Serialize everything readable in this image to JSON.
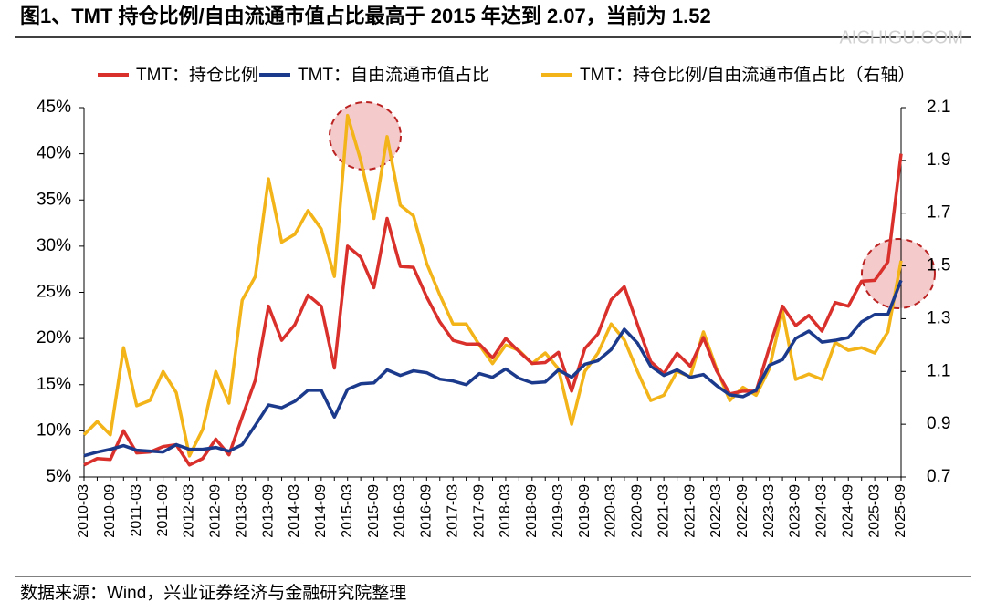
{
  "chart_data": {
    "type": "line",
    "title": "图1、TMT 持仓比例/自由流通市值占比最高于 2015 年达到 2.07，当前为 1.52",
    "source": "数据来源：Wind，兴业证券经济与金融研究院整理",
    "watermark": "AICHIGU.COM",
    "categories": [
      "2010-03",
      null,
      "2010-09",
      null,
      "2011-03",
      null,
      "2011-09",
      null,
      "2012-03",
      null,
      "2012-09",
      null,
      "2013-03",
      null,
      "2013-09",
      null,
      "2014-03",
      null,
      "2014-09",
      null,
      "2015-03",
      null,
      "2015-09",
      null,
      "2016-03",
      null,
      "2016-09",
      null,
      "2017-03",
      null,
      "2017-09",
      null,
      "2018-03",
      null,
      "2018-09",
      null,
      "2019-03",
      null,
      "2019-09",
      null,
      "2020-03",
      null,
      "2020-09",
      null,
      "2021-03",
      null,
      "2021-09",
      null,
      "2022-03",
      null,
      "2022-09",
      null,
      "2023-03",
      null,
      "2023-09",
      null,
      "2024-03",
      null,
      "2024-09",
      null,
      "2025-03",
      null,
      "2025-09"
    ],
    "ylim": [
      5,
      45
    ],
    "yticks": [
      {
        "value": 5,
        "label": "5%"
      },
      {
        "value": 10,
        "label": "10%"
      },
      {
        "value": 15,
        "label": "15%"
      },
      {
        "value": 20,
        "label": "20%"
      },
      {
        "value": 25,
        "label": "25%"
      },
      {
        "value": 30,
        "label": "30%"
      },
      {
        "value": 35,
        "label": "35%"
      },
      {
        "value": 40,
        "label": "40%"
      },
      {
        "value": 45,
        "label": "45%"
      }
    ],
    "y2lim": [
      0.7,
      2.1
    ],
    "y2ticks": [
      0.7,
      0.9,
      1.1,
      1.3,
      1.5,
      1.7,
      1.9,
      2.1
    ],
    "series": [
      {
        "name": "TMT：持仓比例",
        "color": "#d9302c",
        "values": [
          6.3,
          7.0,
          6.9,
          10.0,
          7.6,
          7.7,
          8.3,
          8.5,
          6.3,
          7.0,
          9.1,
          7.4,
          11.5,
          15.5,
          23.5,
          19.8,
          21.5,
          24.7,
          23.5,
          16.8,
          30.0,
          28.8,
          25.5,
          33.0,
          27.8,
          27.7,
          24.5,
          21.8,
          19.8,
          19.4,
          19.4,
          17.9,
          20.0,
          18.6,
          17.3,
          17.4,
          18.5,
          14.3,
          18.9,
          20.5,
          24.2,
          25.6,
          21.5,
          17.5,
          16.2,
          18.4,
          17.0,
          20.1,
          16.5,
          14.0,
          14.3,
          14.3,
          19.0,
          23.5,
          21.4,
          22.5,
          20.8,
          23.9,
          23.5,
          26.2,
          26.3,
          28.3,
          40.0
        ]
      },
      {
        "name": "TMT：自由流通市值占比",
        "color": "#1c3a8c",
        "values": [
          7.3,
          7.7,
          8.0,
          8.4,
          7.9,
          7.8,
          7.7,
          8.5,
          8.0,
          8.0,
          8.2,
          7.8,
          8.5,
          10.6,
          12.8,
          12.5,
          13.2,
          14.4,
          14.4,
          11.5,
          14.5,
          15.1,
          15.2,
          16.6,
          16.0,
          16.5,
          16.3,
          15.6,
          15.4,
          15.0,
          16.2,
          15.8,
          16.7,
          15.7,
          15.2,
          15.3,
          16.6,
          15.8,
          17.2,
          17.6,
          18.8,
          21.0,
          19.5,
          17.0,
          16.0,
          16.6,
          15.8,
          16.1,
          14.9,
          13.9,
          13.7,
          14.4,
          17.1,
          17.7,
          20.0,
          20.8,
          19.6,
          19.8,
          20.1,
          21.8,
          22.6,
          22.6,
          26.3
        ]
      },
      {
        "name": "TMT：持仓比例/自由流通市值占比（右轴）",
        "color": "#f2b418",
        "axis": "y2",
        "values": [
          0.86,
          0.91,
          0.86,
          1.19,
          0.97,
          0.99,
          1.1,
          1.02,
          0.78,
          0.88,
          1.1,
          0.98,
          1.37,
          1.46,
          1.83,
          1.59,
          1.62,
          1.71,
          1.64,
          1.46,
          2.07,
          1.9,
          1.68,
          1.99,
          1.73,
          1.69,
          1.51,
          1.39,
          1.28,
          1.28,
          1.2,
          1.13,
          1.2,
          1.18,
          1.13,
          1.17,
          1.11,
          0.9,
          1.1,
          1.17,
          1.28,
          1.22,
          1.1,
          0.99,
          1.01,
          1.1,
          1.08,
          1.25,
          1.11,
          0.99,
          1.04,
          1.01,
          1.11,
          1.33,
          1.07,
          1.09,
          1.07,
          1.21,
          1.18,
          1.19,
          1.17,
          1.25,
          1.52
        ]
      }
    ]
  }
}
